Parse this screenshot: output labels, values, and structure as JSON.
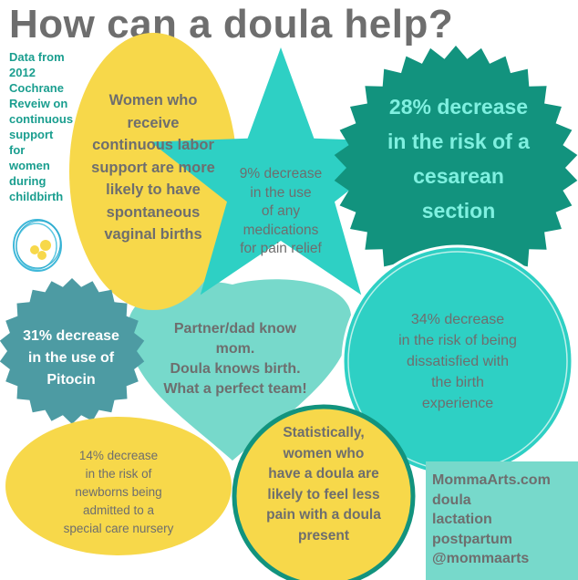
{
  "title": "How can a doula help?",
  "source_lines": [
    "Data from",
    "2012",
    "Cochrane",
    "Reveiw on",
    "continuous",
    "support",
    "for",
    "women",
    "during",
    "childbirth"
  ],
  "facts": {
    "spontaneous_births": [
      "Women who",
      "receive",
      "continuous labor",
      "support are more",
      "likely to have",
      "spontaneous",
      "vaginal births"
    ],
    "medications": [
      "9% decrease",
      "in the use",
      "of any",
      "medications",
      "for pain relief"
    ],
    "cesarean": [
      "28% decrease",
      "in the risk of a",
      "cesarean",
      "section"
    ],
    "pitocin": [
      "31% decrease",
      "in the use of",
      "Pitocin"
    ],
    "team": [
      "Partner/dad know",
      "mom.",
      "Doula knows birth.",
      "What a perfect team!"
    ],
    "dissatisfied": [
      "34% decrease",
      "in the risk of being",
      "dissatisfied with",
      "the birth",
      "experience"
    ],
    "nursery": [
      "14% decrease",
      "in the risk of",
      "newborns being",
      "admitted to a",
      "special care nursery"
    ],
    "less_pain": [
      "Statistically,",
      "women who",
      "have a doula are",
      "likely to feel less",
      "pain with a doula",
      "present"
    ]
  },
  "brand": {
    "site": "MommaArts.com",
    "services": [
      "doula",
      "lactation",
      "postpartum"
    ],
    "handle": "@mommaarts"
  },
  "colors": {
    "yellow": "#f7d84a",
    "teal_light": "#77d9cb",
    "turquoise": "#2ed0c4",
    "dark_green": "#12937e",
    "slate_teal": "#4d9ba3",
    "grey_text": "#6e6e6e",
    "text_teal": "#1a9e8f"
  }
}
